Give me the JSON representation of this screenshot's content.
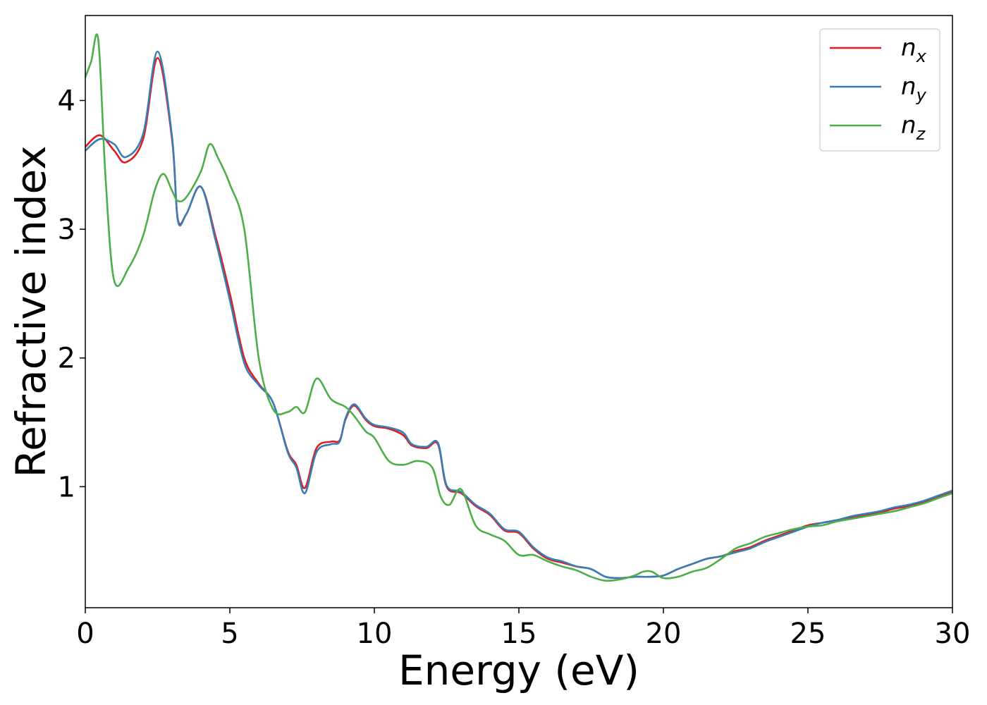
{
  "chart_data": {
    "type": "line",
    "xlabel": "Energy (eV)",
    "ylabel": "Refractive index",
    "xlim": [
      0,
      30
    ],
    "ylim": [
      0.06,
      4.66
    ],
    "xticks": [
      0,
      5,
      10,
      15,
      20,
      25,
      30
    ],
    "yticks": [
      1,
      2,
      3,
      4
    ],
    "grid": false,
    "legend_position": "top-right",
    "series": [
      {
        "name": "n",
        "subscript": "x",
        "color": "#e41a1c",
        "x": [
          0,
          0.5,
          1.0,
          1.4,
          2.0,
          2.5,
          3.0,
          3.2,
          3.5,
          4.0,
          4.5,
          5.0,
          5.5,
          6.0,
          6.5,
          7.0,
          7.3,
          7.6,
          8.0,
          8.5,
          8.8,
          9.0,
          9.3,
          9.7,
          10.0,
          10.5,
          11.0,
          11.3,
          11.8,
          12.2,
          12.5,
          13.0,
          13.5,
          14.0,
          14.5,
          15.0,
          15.5,
          16.0,
          16.5,
          17.0,
          17.5,
          18.0,
          18.5,
          19.0,
          19.5,
          20.0,
          20.5,
          21.0,
          21.5,
          22.0,
          22.5,
          23.0,
          23.5,
          24.0,
          24.5,
          25.0,
          25.5,
          26.0,
          26.5,
          27.0,
          27.5,
          28.0,
          28.5,
          29.0,
          29.5,
          30.0
        ],
        "y": [
          3.64,
          3.73,
          3.61,
          3.52,
          3.7,
          4.33,
          3.7,
          3.08,
          3.12,
          3.33,
          2.95,
          2.5,
          2.0,
          1.8,
          1.65,
          1.28,
          1.17,
          0.99,
          1.3,
          1.35,
          1.36,
          1.52,
          1.63,
          1.52,
          1.47,
          1.45,
          1.4,
          1.32,
          1.3,
          1.33,
          1.0,
          0.95,
          0.85,
          0.78,
          0.66,
          0.64,
          0.52,
          0.44,
          0.41,
          0.38,
          0.36,
          0.3,
          0.29,
          0.3,
          0.3,
          0.31,
          0.36,
          0.4,
          0.44,
          0.46,
          0.5,
          0.53,
          0.58,
          0.62,
          0.66,
          0.7,
          0.72,
          0.74,
          0.76,
          0.78,
          0.8,
          0.83,
          0.85,
          0.88,
          0.92,
          0.96
        ]
      },
      {
        "name": "n",
        "subscript": "y",
        "color": "#377eb8",
        "x": [
          0,
          0.5,
          1.0,
          1.4,
          2.0,
          2.5,
          3.0,
          3.2,
          3.5,
          4.0,
          4.5,
          5.0,
          5.5,
          6.0,
          6.5,
          7.0,
          7.3,
          7.6,
          8.0,
          8.5,
          8.8,
          9.0,
          9.3,
          9.7,
          10.0,
          10.5,
          11.0,
          11.3,
          11.8,
          12.2,
          12.5,
          13.0,
          13.5,
          14.0,
          14.5,
          15.0,
          15.5,
          16.0,
          16.5,
          17.0,
          17.5,
          18.0,
          18.5,
          19.0,
          19.5,
          20.0,
          20.5,
          21.0,
          21.5,
          22.0,
          22.5,
          23.0,
          23.5,
          24.0,
          24.5,
          25.0,
          25.5,
          26.0,
          26.5,
          27.0,
          27.5,
          28.0,
          28.5,
          29.0,
          29.5,
          30.0
        ],
        "y": [
          3.61,
          3.7,
          3.66,
          3.56,
          3.74,
          4.38,
          3.72,
          3.07,
          3.12,
          3.33,
          2.92,
          2.45,
          1.96,
          1.79,
          1.65,
          1.27,
          1.15,
          0.95,
          1.27,
          1.33,
          1.35,
          1.53,
          1.64,
          1.53,
          1.48,
          1.46,
          1.42,
          1.33,
          1.31,
          1.34,
          1.01,
          0.96,
          0.86,
          0.79,
          0.67,
          0.65,
          0.53,
          0.45,
          0.42,
          0.38,
          0.36,
          0.3,
          0.29,
          0.3,
          0.3,
          0.31,
          0.36,
          0.4,
          0.44,
          0.46,
          0.49,
          0.52,
          0.57,
          0.61,
          0.65,
          0.69,
          0.72,
          0.74,
          0.77,
          0.79,
          0.81,
          0.84,
          0.86,
          0.89,
          0.93,
          0.97
        ]
      },
      {
        "name": "n",
        "subscript": "z",
        "color": "#4daf4a",
        "x": [
          0,
          0.2,
          0.45,
          0.7,
          1.0,
          1.5,
          2.0,
          2.4,
          2.7,
          3.0,
          3.2,
          3.5,
          4.0,
          4.3,
          4.6,
          5.0,
          5.5,
          6.0,
          6.5,
          7.0,
          7.3,
          7.6,
          8.0,
          8.5,
          9.0,
          9.3,
          9.7,
          10.0,
          10.5,
          11.0,
          11.5,
          12.0,
          12.3,
          12.6,
          13.0,
          13.5,
          14.0,
          14.5,
          15.0,
          15.5,
          16.0,
          16.5,
          17.0,
          17.5,
          18.0,
          18.5,
          19.0,
          19.3,
          19.6,
          20.0,
          20.5,
          21.0,
          21.5,
          22.0,
          22.5,
          23.0,
          23.5,
          24.0,
          24.5,
          25.0,
          25.5,
          26.0,
          26.5,
          27.0,
          27.5,
          28.0,
          28.5,
          29.0,
          29.5,
          30.0
        ],
        "y": [
          4.18,
          4.3,
          4.47,
          3.4,
          2.6,
          2.7,
          2.95,
          3.3,
          3.43,
          3.3,
          3.22,
          3.25,
          3.45,
          3.66,
          3.55,
          3.35,
          3.0,
          2.0,
          1.6,
          1.58,
          1.62,
          1.58,
          1.84,
          1.68,
          1.62,
          1.55,
          1.43,
          1.38,
          1.2,
          1.17,
          1.2,
          1.15,
          0.92,
          0.86,
          0.98,
          0.7,
          0.63,
          0.58,
          0.47,
          0.47,
          0.42,
          0.38,
          0.35,
          0.3,
          0.27,
          0.28,
          0.31,
          0.34,
          0.34,
          0.29,
          0.3,
          0.34,
          0.37,
          0.44,
          0.52,
          0.56,
          0.61,
          0.64,
          0.67,
          0.69,
          0.7,
          0.73,
          0.75,
          0.77,
          0.79,
          0.81,
          0.84,
          0.87,
          0.91,
          0.95
        ]
      }
    ]
  }
}
